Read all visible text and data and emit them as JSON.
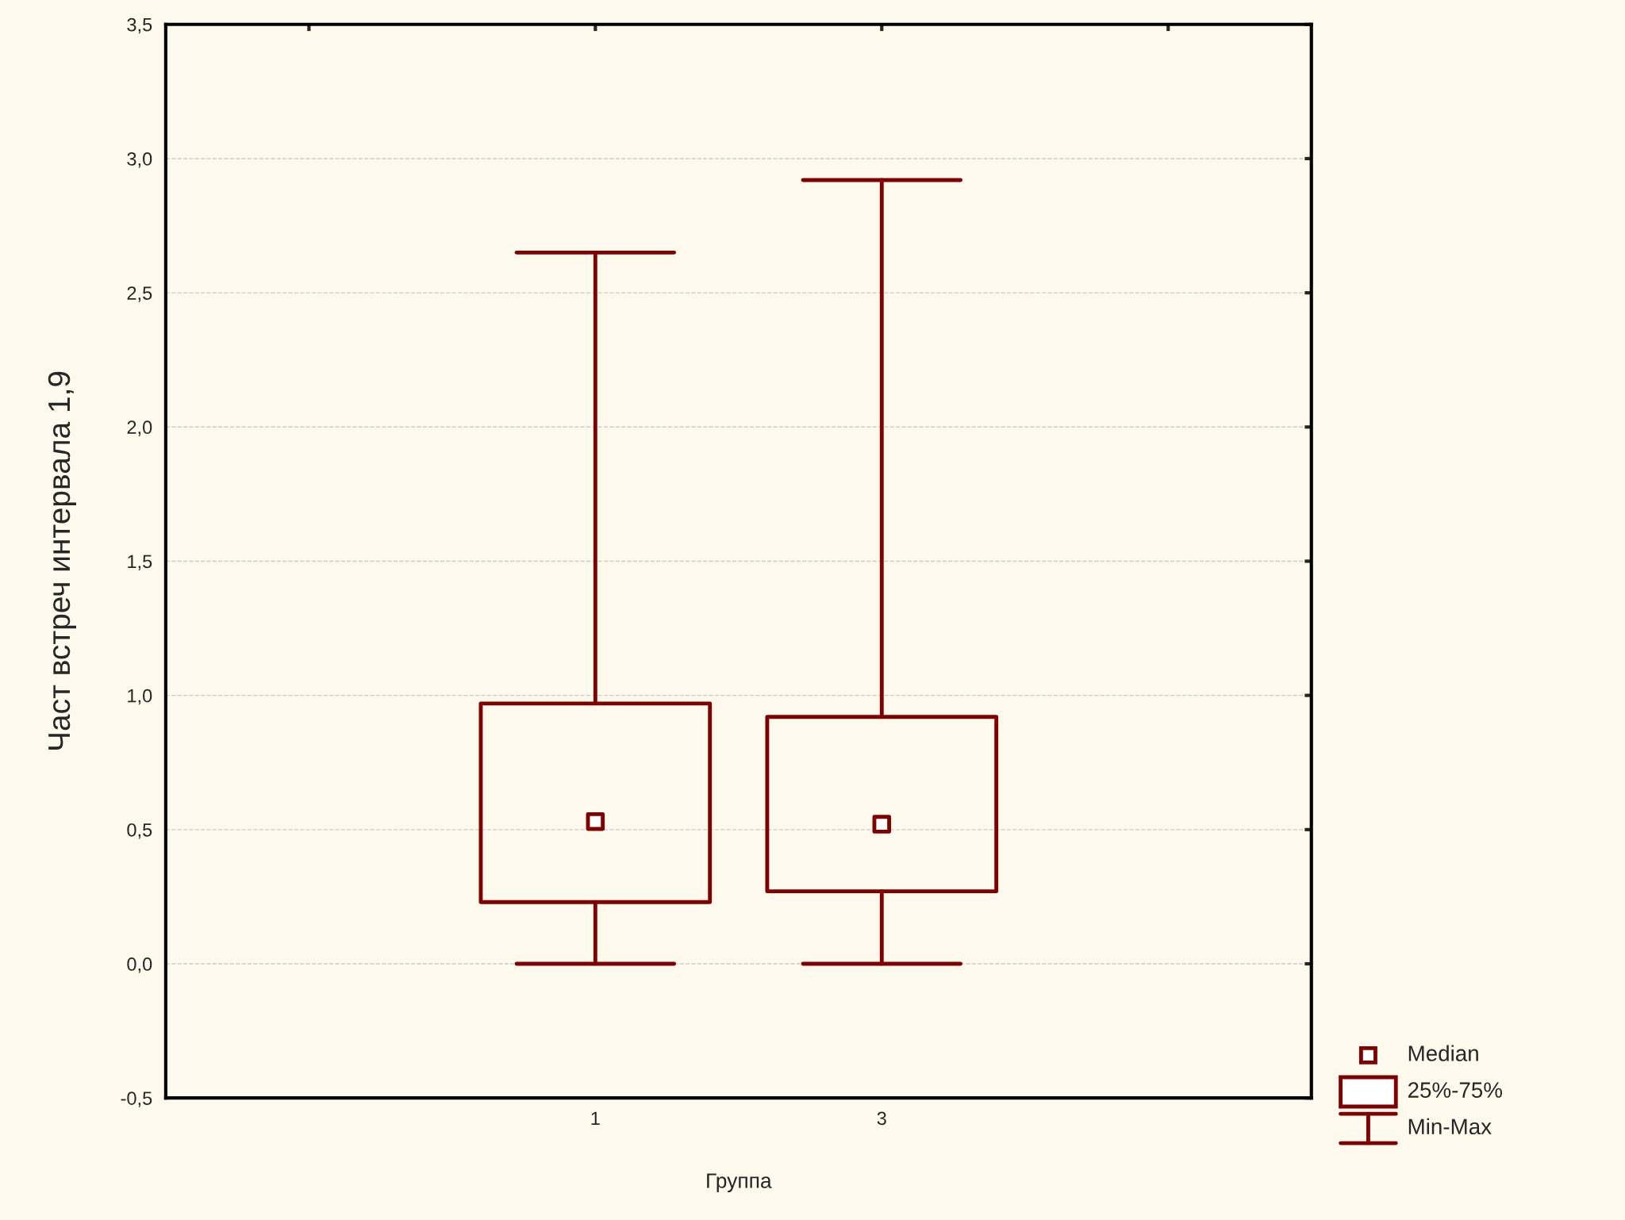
{
  "chart_data": {
    "type": "box",
    "xlabel": "Группа",
    "ylabel": "Част встреч интервала 1,9",
    "categories": [
      "1",
      "3"
    ],
    "color": "#7f0000",
    "boxes": [
      {
        "low": 0,
        "q1": 0.23,
        "median": 0.53,
        "q3": 0.97,
        "high": 2.65
      },
      {
        "low": 0,
        "q1": 0.27,
        "median": 0.52,
        "q3": 0.92,
        "high": 2.92
      }
    ],
    "ylim": [
      -0.5,
      3.5
    ],
    "yticks": [
      {
        "value": -0.5,
        "label": "-0,5"
      },
      {
        "value": 0,
        "label": "0,0"
      },
      {
        "value": 0.5,
        "label": "0,5"
      },
      {
        "value": 1,
        "label": "1,0"
      },
      {
        "value": 1.5,
        "label": "1,5"
      },
      {
        "value": 2,
        "label": "2,0"
      },
      {
        "value": 2.5,
        "label": "2,5"
      },
      {
        "value": 3,
        "label": "3,0"
      },
      {
        "value": 3.5,
        "label": "3,5"
      }
    ],
    "grid": "y",
    "annotations": [
      "Median",
      "25%-75%",
      "Min-Max"
    ]
  }
}
